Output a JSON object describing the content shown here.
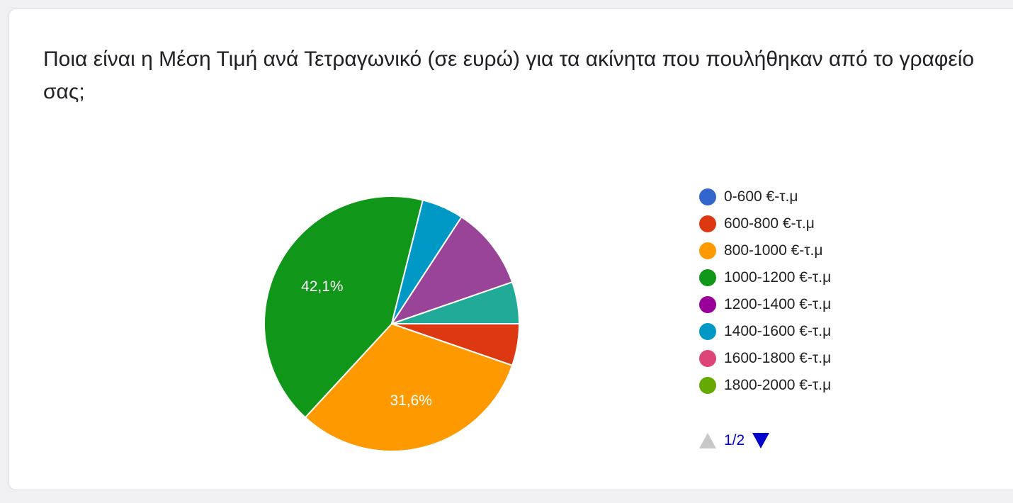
{
  "question": "Ποια είναι η Μέση Τιμή ανά Τετραγωνικό (σε ευρώ) για τα ακίνητα που πουλήθηκαν από το γραφείο σας;",
  "chart_data": {
    "type": "pie",
    "slices": [
      {
        "label": "0-600 €-τ.μ",
        "value": 0,
        "color": "#3366cc"
      },
      {
        "label": "600-800 €-τ.μ",
        "value": 5.3,
        "color": "#dc3912"
      },
      {
        "label": "800-1000 €-τ.μ",
        "value": 31.6,
        "color": "#ff9900",
        "data_label": "31,6%"
      },
      {
        "label": "1000-1200 €-τ.μ",
        "value": 42.1,
        "color": "#109618",
        "data_label": "42,1%"
      },
      {
        "label": "1200-1400 €-τ.μ",
        "value": 0,
        "color": "#990099"
      },
      {
        "label": "1400-1600 €-τ.μ",
        "value": 5.3,
        "color": "#0099c6"
      },
      {
        "label": "1600-1800 €-τ.μ",
        "value": 0,
        "color": "#dd4477"
      },
      {
        "label": "1800-2000 €-τ.μ",
        "value": 0,
        "color": "#66aa00"
      }
    ],
    "hidden_slices": [
      {
        "value": 10.5,
        "color": "#994499"
      },
      {
        "value": 5.3,
        "color": "#22aa99"
      }
    ],
    "legend_position": "right"
  },
  "legend_items": [
    {
      "label": "0-600 €-τ.μ",
      "color": "#3366cc"
    },
    {
      "label": "600-800 €-τ.μ",
      "color": "#dc3912"
    },
    {
      "label": "800-1000 €-τ.μ",
      "color": "#ff9900"
    },
    {
      "label": "1000-1200 €-τ.μ",
      "color": "#109618"
    },
    {
      "label": "1200-1400 €-τ.μ",
      "color": "#990099"
    },
    {
      "label": "1400-1600 €-τ.μ",
      "color": "#0099c6"
    },
    {
      "label": "1600-1800 €-τ.μ",
      "color": "#dd4477"
    },
    {
      "label": "1800-2000 €-τ.μ",
      "color": "#66aa00"
    }
  ],
  "pager": {
    "page": "1/2",
    "up_icon": "triangle-up-icon",
    "down_icon": "triangle-down-icon"
  }
}
